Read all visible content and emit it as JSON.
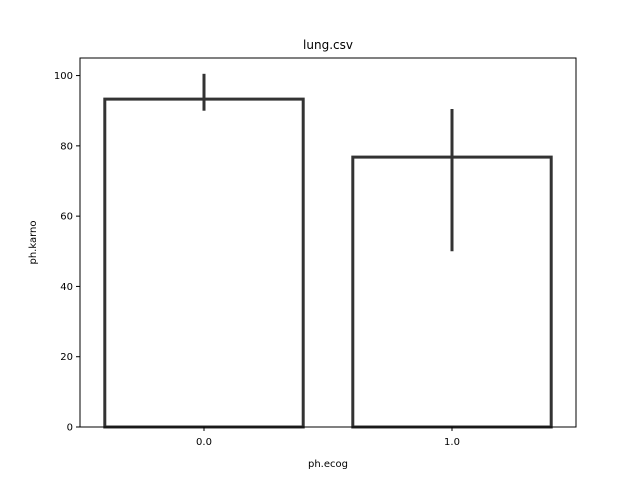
{
  "chart_data": {
    "type": "bar",
    "title": "lung.csv",
    "xlabel": "ph.ecog",
    "ylabel": "ph.karno",
    "categories": [
      "0.0",
      "1.0"
    ],
    "values": [
      93.3,
      76.8
    ],
    "error_bars": [
      {
        "low": 90.0,
        "high": 100.5
      },
      {
        "low": 50.0,
        "high": 90.5
      }
    ],
    "ylim": [
      0,
      105
    ],
    "yticks": [
      0,
      20,
      40,
      60,
      80,
      100
    ],
    "grid": false,
    "legend": "none",
    "colors": {
      "bar_edge": "#333333",
      "bar_fill": "#ffffff",
      "error_bar": "#333333",
      "axes": "#000000"
    }
  }
}
